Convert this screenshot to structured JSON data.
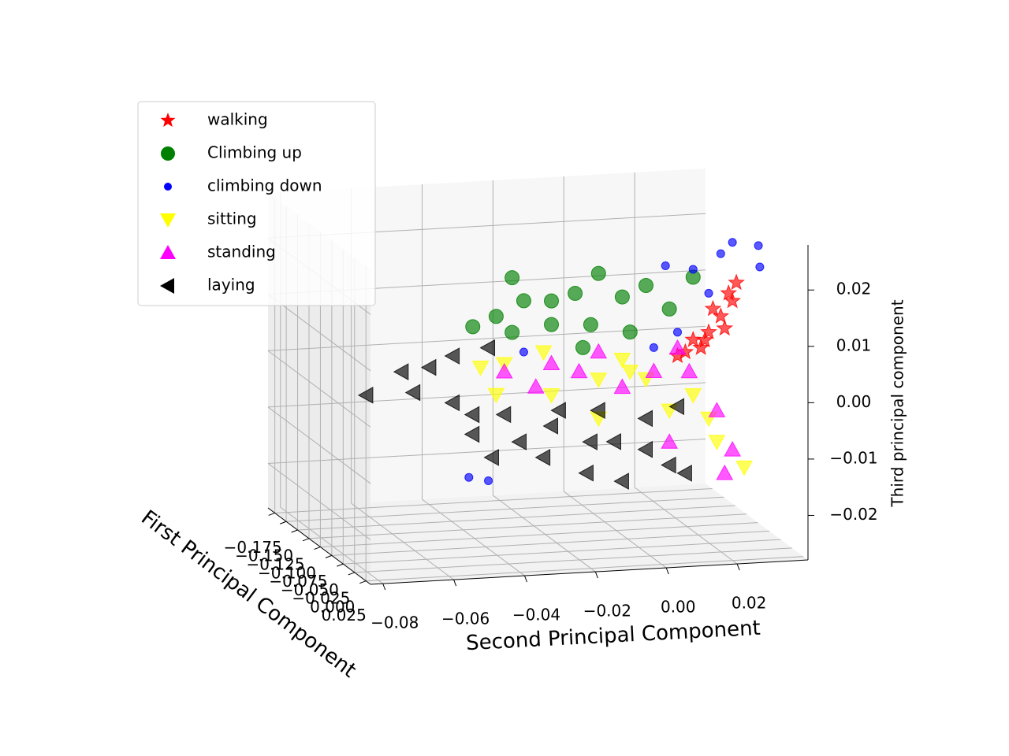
{
  "chart_data": {
    "type": "scatter3d",
    "xlabel": "First Principal Component",
    "ylabel": "Second Principal Component",
    "zlabel": "Third principal component",
    "xlim": [
      -0.19,
      0.035
    ],
    "ylim": [
      -0.0835,
      0.04
    ],
    "zlim": [
      -0.0279,
      0.028
    ],
    "xticks": [
      {
        "value": -0.175,
        "label": "−0.175"
      },
      {
        "value": -0.15,
        "label": "−0.150"
      },
      {
        "value": -0.125,
        "label": "−0.125"
      },
      {
        "value": -0.1,
        "label": "−0.100"
      },
      {
        "value": -0.075,
        "label": "−0.075"
      },
      {
        "value": -0.05,
        "label": "−0.050"
      },
      {
        "value": -0.025,
        "label": "−0.025"
      },
      {
        "value": 0,
        "label": "0.000"
      },
      0.025
    ],
    "yticks": [
      {
        "value": -0.08,
        "label": "−0.08"
      },
      {
        "value": -0.06,
        "label": "−0.06"
      },
      {
        "value": -0.04,
        "label": "−0.04"
      },
      {
        "value": -0.02,
        "label": "−0.02"
      },
      {
        "value": 0,
        "label": "0.00"
      },
      0.02
    ],
    "zticks": [
      {
        "value": -0.02,
        "label": "−0.02"
      },
      {
        "value": -0.01,
        "label": "−0.01"
      },
      {
        "value": 0,
        "label": "0.00"
      },
      0.01,
      0.02
    ],
    "grid": true,
    "legend": "upper left",
    "series": [
      {
        "name": "walking",
        "color": "#ff0000",
        "marker": "star",
        "x": [
          -0.05,
          -0.05,
          -0.05,
          -0.05,
          -0.05,
          -0.05,
          -0.05,
          -0.05,
          -0.05,
          -0.05,
          -0.05,
          -0.05
        ],
        "y": [
          0.0307,
          0.0296,
          0.0263,
          0.0229,
          0.0207,
          0.0185,
          0.0163,
          0.0274,
          0.0241,
          0.0141,
          0.0285,
          0.0218
        ],
        "z": [
          0.0165,
          0.0133,
          0.0107,
          0.008,
          0.0053,
          0.0068,
          0.0047,
          0.0085,
          0.0121,
          0.0041,
          0.0147,
          0.0066
        ]
      },
      {
        "name": "Climbing up",
        "color": "#008000",
        "marker": "circle",
        "x": [
          -0.05,
          -0.05,
          -0.05,
          -0.05,
          -0.05,
          -0.05,
          -0.05,
          -0.05,
          -0.05,
          -0.05,
          -0.05,
          -0.05,
          -0.05,
          -0.05,
          -0.05,
          -0.05
        ],
        "y": [
          -0.0437,
          -0.0371,
          -0.0326,
          -0.0293,
          -0.0215,
          -0.0148,
          -0.0082,
          -0.0015,
          0.0052,
          0.0118,
          0.0185,
          -0.0104,
          0.0007,
          -0.0215,
          -0.0326,
          -0.0126
        ],
        "z": [
          0.0113,
          0.0129,
          0.0196,
          0.0154,
          0.0151,
          0.0162,
          0.0195,
          0.0151,
          0.0169,
          0.0125,
          0.0179,
          0.0105,
          0.0088,
          0.0109,
          0.0099,
          0.0065
        ]
      },
      {
        "name": "climbing down",
        "color": "#0000ff",
        "marker": "dot",
        "x": [
          -0.05,
          0,
          0,
          -0.05,
          -0.05,
          -0.05,
          -0.05,
          -0.05,
          -0.05,
          -0.05,
          -0.05,
          -0.05
        ],
        "y": [
          0.0296,
          0.0305,
          0.0309,
          0.0263,
          0.0185,
          0.0107,
          0.0229,
          0.0141,
          0.0074,
          -0.0293,
          -0.0448,
          -0.0393
        ],
        "z": [
          0.0237,
          0.0261,
          0.0223,
          0.0218,
          0.0193,
          0.0202,
          0.0149,
          0.0083,
          0.0058,
          0.0063,
          -0.0154,
          -0.0162
        ]
      },
      {
        "name": "sitting",
        "color": "#ffff00",
        "marker": "triangle-down",
        "x": [
          -0.05,
          -0.05,
          -0.05,
          -0.05,
          -0.05,
          -0.05,
          -0.05,
          -0.05,
          -0.05,
          -0.05,
          0,
          -0.05,
          -0.05,
          -0.05,
          -0.05
        ],
        "y": [
          -0.0415,
          -0.0348,
          -0.0237,
          -0.0082,
          0.0007,
          0.0052,
          -0.0082,
          0.0185,
          0.0229,
          0.0252,
          0.0265,
          -0.0215,
          -0.0371,
          0.0118,
          -0.0015
        ],
        "z": [
          0.004,
          0.0044,
          0.0061,
          0.0007,
          0.0018,
          0.0003,
          -0.0062,
          -0.003,
          -0.0073,
          -0.0115,
          -0.0131,
          -0.0016,
          -0.001,
          -0.0055,
          0.004
        ]
      },
      {
        "name": "standing",
        "color": "#ff00ff",
        "marker": "triangle-up",
        "x": [
          -0.05,
          -0.05,
          -0.05,
          -0.05,
          -0.05,
          -0.05,
          -0.05,
          -0.05,
          -0.05,
          -0.05,
          -0.05,
          -0.05,
          -0.05
        ],
        "y": [
          -0.0348,
          -0.0215,
          -0.0137,
          -0.0082,
          -0.0015,
          0.0074,
          0.0141,
          0.0174,
          0.0252,
          0.0296,
          0.0274,
          0.0118,
          -0.0259
        ],
        "z": [
          0.003,
          0.004,
          0.0023,
          0.0056,
          -0.0009,
          0.0016,
          0.0055,
          0.0012,
          -0.006,
          -0.0131,
          -0.0172,
          -0.0111,
          0
        ]
      },
      {
        "name": "laying",
        "color": "#000000",
        "marker": "triangle-left",
        "x": [
          -0.05,
          -0.05,
          -0.05,
          -0.05,
          -0.05,
          -0.05,
          -0.05,
          -0.05,
          -0.05,
          -0.05,
          -0.05,
          -0.05,
          -0.05,
          -0.05,
          -0.05,
          -0.05,
          -0.05,
          -0.05,
          -0.05,
          -0.05,
          -0.05,
          -0.05,
          -0.05,
          -0.05,
          -0.05
        ],
        "y": [
          -0.0737,
          -0.0637,
          -0.0559,
          -0.0493,
          -0.0393,
          -0.0604,
          -0.0493,
          -0.0437,
          -0.0348,
          -0.0437,
          -0.0382,
          -0.0304,
          -0.0215,
          -0.0104,
          -0.0037,
          0.0052,
          0.0118,
          0.0163,
          -0.0015,
          -0.0193,
          -0.0082,
          0.0052,
          0.0141,
          -0.0237,
          -0.0115
        ],
        "z": [
          0.0002,
          0.004,
          0.0045,
          0.0063,
          0.0074,
          0.0002,
          -0.002,
          -0.0043,
          -0.0046,
          -0.0078,
          -0.0121,
          -0.0096,
          -0.0071,
          -0.0103,
          -0.0105,
          -0.0122,
          -0.0152,
          -0.0168,
          -0.0176,
          -0.0044,
          -0.0048,
          -0.0067,
          -0.0049,
          -0.0126,
          -0.0158
        ]
      }
    ]
  }
}
